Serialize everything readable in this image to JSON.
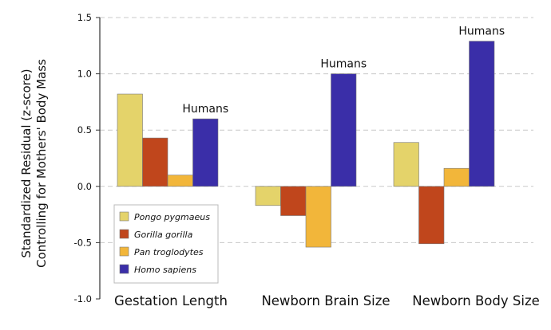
{
  "chart_data": {
    "type": "bar",
    "title": "",
    "ylabel": [
      "Standardized Residual (z-score)",
      "Controlling for Mothers' Body Mass"
    ],
    "xlabel": "",
    "ylim": [
      -1.0,
      1.5
    ],
    "yticks": [
      "1.5",
      "1.0",
      "0.5",
      "0.0",
      "-0.5",
      "-1.0"
    ],
    "ytick_values": [
      1.5,
      1.0,
      0.5,
      0.0,
      -0.5,
      -1.0
    ],
    "grid": true,
    "categories": [
      "Gestation Length",
      "Newborn Brain Size",
      "Newborn Body Size"
    ],
    "series": [
      {
        "name": "Pongo pygmaeus",
        "color": "#e4d36a",
        "values": [
          0.82,
          -0.17,
          0.39
        ]
      },
      {
        "name": "Gorilla gorilla",
        "color": "#c0461c",
        "values": [
          0.43,
          -0.26,
          -0.51
        ]
      },
      {
        "name": "Pan troglodytes",
        "color": "#f2b63a",
        "values": [
          0.1,
          -0.54,
          0.16
        ]
      },
      {
        "name": "Homo sapiens",
        "color": "#3a2ea8",
        "values": [
          0.6,
          1.0,
          1.29
        ]
      }
    ],
    "annotations": [
      "Humans",
      "Humans",
      "Humans"
    ],
    "legend_position": "bottom-left"
  }
}
